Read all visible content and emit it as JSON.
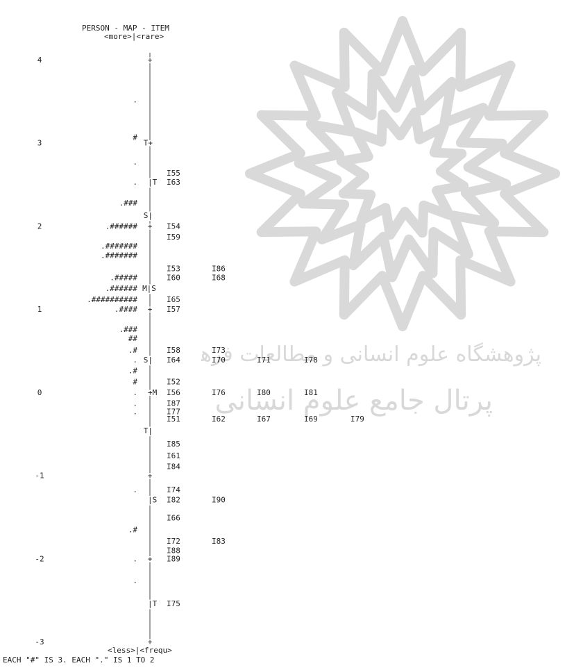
{
  "map": {
    "title": "PERSON - MAP - ITEM",
    "subtitle": "<more>|<rare>",
    "bottom_label": "<less>|<frequ>",
    "footer": "EACH \"#\" IS 3. EACH \".\" IS 1 TO 2",
    "watermark_line1": "پژوهشگاه علوم انسانی و مطالعات فرهنگی",
    "watermark_line2": "پرتال جامع علوم انسانی"
  },
  "chart_data": {
    "type": "wright-map",
    "ylim": [
      -3,
      4
    ],
    "y_ticks": [
      "4",
      "3",
      "2",
      "1",
      "0",
      "-1",
      "-2",
      "-3"
    ],
    "rows": [
      {
        "y": 4.0,
        "persons": "",
        "marker": "+",
        "items": []
      },
      {
        "y": 3.52,
        "persons": ".",
        "marker": "",
        "items": []
      },
      {
        "y": 3.07,
        "persons": "#",
        "marker": "",
        "items": []
      },
      {
        "y": 3.0,
        "persons": "",
        "marker": "T+",
        "items": []
      },
      {
        "y": 2.77,
        "persons": ".",
        "marker": "",
        "items": []
      },
      {
        "y": 2.64,
        "persons": "",
        "marker": "",
        "items": [
          "I55"
        ]
      },
      {
        "y": 2.53,
        "persons": ".",
        "marker": "|T",
        "items": [
          "I63"
        ]
      },
      {
        "y": 2.28,
        "persons": ".###",
        "marker": "",
        "items": []
      },
      {
        "y": 2.13,
        "persons": "",
        "marker": "S|",
        "items": []
      },
      {
        "y": 2.0,
        "persons": ".######",
        "marker": "+",
        "items": [
          "I54"
        ]
      },
      {
        "y": 1.87,
        "persons": "",
        "marker": "",
        "items": [
          "I59"
        ]
      },
      {
        "y": 1.76,
        "persons": ".#######",
        "marker": "",
        "items": []
      },
      {
        "y": 1.65,
        "persons": ".#######",
        "marker": "",
        "items": []
      },
      {
        "y": 1.49,
        "persons": "",
        "marker": "",
        "items": [
          "I53",
          "I86"
        ]
      },
      {
        "y": 1.38,
        "persons": ".#####",
        "marker": "",
        "items": [
          "I60",
          "I68"
        ]
      },
      {
        "y": 1.25,
        "persons": ".######",
        "marker": "M|S",
        "items": []
      },
      {
        "y": 1.12,
        "persons": ".##########",
        "marker": "",
        "items": [
          "I65"
        ]
      },
      {
        "y": 1.0,
        "persons": ".####",
        "marker": "+",
        "items": [
          "I57"
        ]
      },
      {
        "y": 0.76,
        "persons": ".###",
        "marker": "",
        "items": []
      },
      {
        "y": 0.65,
        "persons": "##",
        "marker": "",
        "items": []
      },
      {
        "y": 0.51,
        "persons": ".#",
        "marker": "",
        "items": [
          "I58",
          "I73"
        ]
      },
      {
        "y": 0.39,
        "persons": ".",
        "marker": "S|",
        "items": [
          "I64",
          "I70",
          "I71",
          "I78"
        ]
      },
      {
        "y": 0.26,
        "persons": ".#",
        "marker": "",
        "items": []
      },
      {
        "y": 0.13,
        "persons": "#",
        "marker": "",
        "items": [
          "I52"
        ]
      },
      {
        "y": 0.0,
        "persons": ".",
        "marker": "+M",
        "items": [
          "I56",
          "I76",
          "I80",
          "I81"
        ]
      },
      {
        "y": -0.13,
        "persons": ".",
        "marker": "",
        "items": [
          "I87"
        ]
      },
      {
        "y": -0.23,
        "persons": ".",
        "marker": "",
        "items": [
          "I77"
        ]
      },
      {
        "y": -0.32,
        "persons": "",
        "marker": "",
        "items": [
          "I51",
          "I62",
          "I67",
          "I69",
          "I79"
        ]
      },
      {
        "y": -0.46,
        "persons": "",
        "marker": "T|",
        "items": []
      },
      {
        "y": -0.62,
        "persons": "",
        "marker": "",
        "items": [
          "I85"
        ]
      },
      {
        "y": -0.76,
        "persons": "",
        "marker": "",
        "items": [
          "I61"
        ]
      },
      {
        "y": -0.89,
        "persons": "",
        "marker": "",
        "items": [
          "I84"
        ]
      },
      {
        "y": -1.0,
        "persons": "",
        "marker": "+",
        "items": []
      },
      {
        "y": -1.17,
        "persons": ".",
        "marker": "",
        "items": [
          "I74"
        ]
      },
      {
        "y": -1.29,
        "persons": "",
        "marker": "|S",
        "items": [
          "I82",
          "I90"
        ]
      },
      {
        "y": -1.51,
        "persons": "",
        "marker": "",
        "items": [
          "I66"
        ]
      },
      {
        "y": -1.65,
        "persons": ".#",
        "marker": "",
        "items": []
      },
      {
        "y": -1.79,
        "persons": "",
        "marker": "",
        "items": [
          "I72",
          "I83"
        ]
      },
      {
        "y": -1.9,
        "persons": "",
        "marker": "",
        "items": [
          "I88"
        ]
      },
      {
        "y": -2.0,
        "persons": ".",
        "marker": "+",
        "items": [
          "I89"
        ]
      },
      {
        "y": -2.26,
        "persons": ".",
        "marker": "",
        "items": []
      },
      {
        "y": -2.54,
        "persons": "",
        "marker": "|T",
        "items": [
          "I75"
        ]
      },
      {
        "y": -3.0,
        "persons": "",
        "marker": "+",
        "items": []
      }
    ]
  }
}
